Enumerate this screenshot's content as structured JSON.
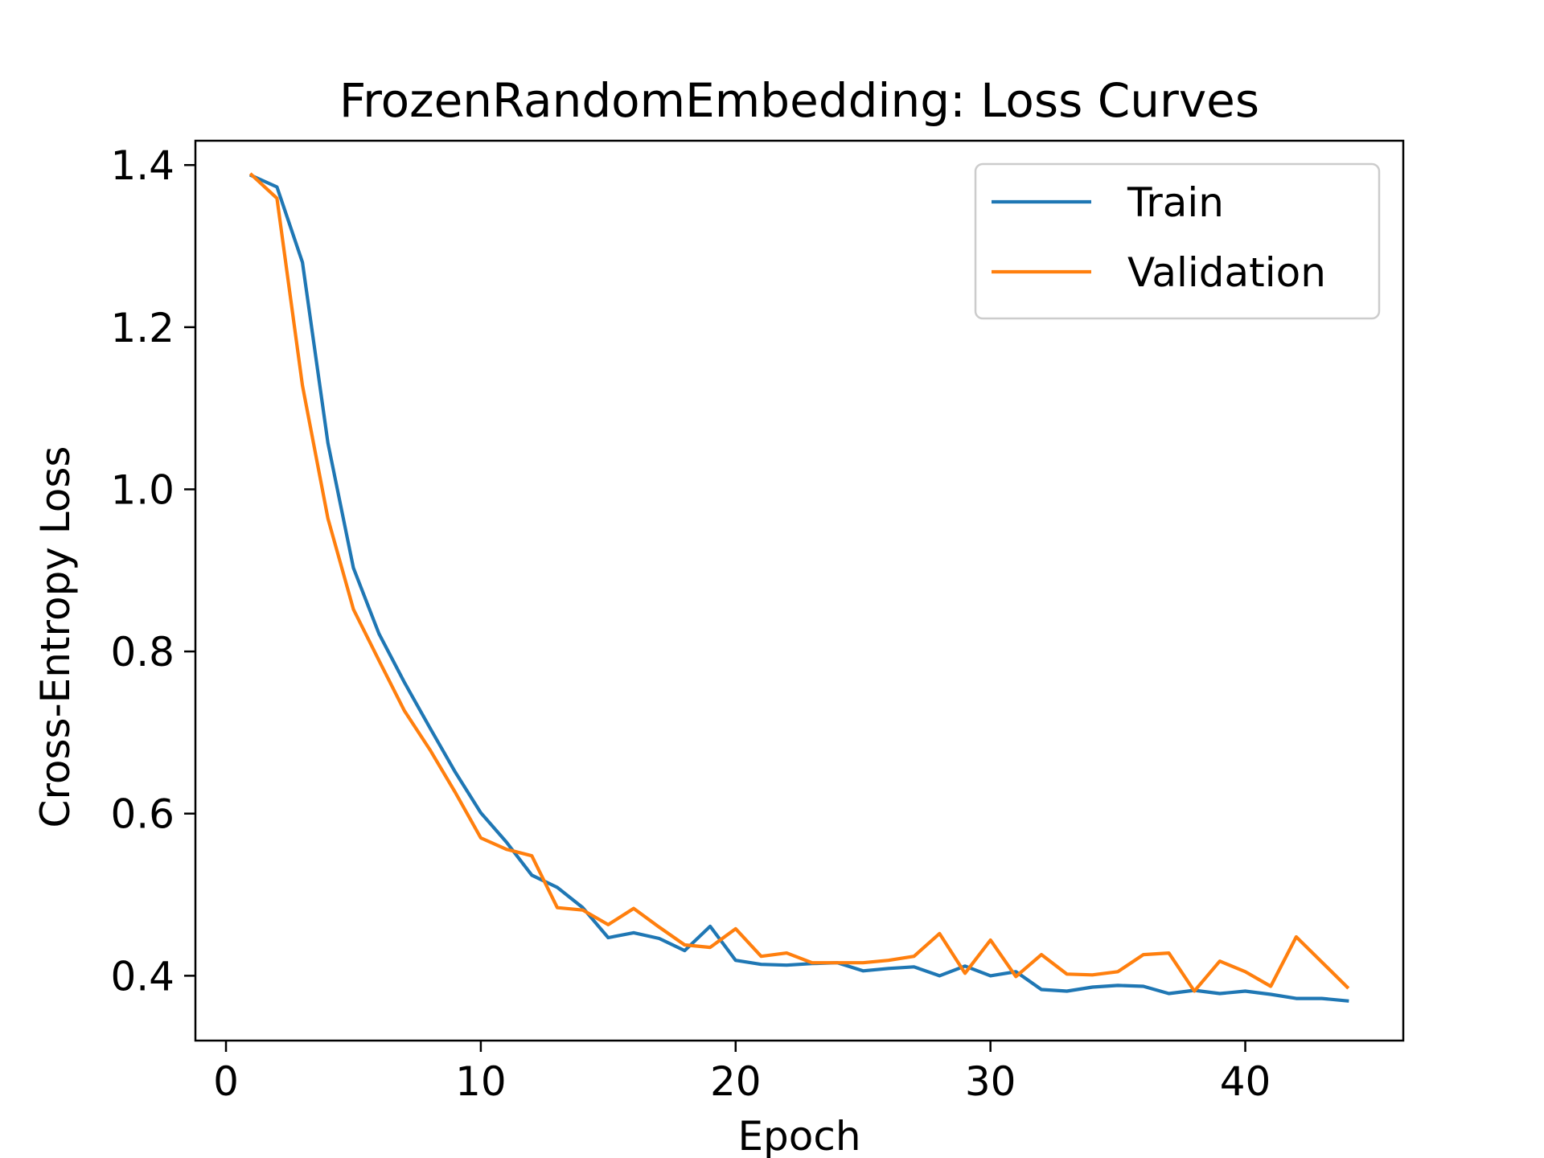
{
  "chart_data": {
    "type": "line",
    "title": "FrozenRandomEmbedding: Loss Curves",
    "xlabel": "Epoch",
    "ylabel": "Cross-Entropy Loss",
    "xlim": [
      -1.2,
      46.2
    ],
    "ylim": [
      0.32,
      1.43
    ],
    "xticks": [
      0,
      10,
      20,
      30,
      40
    ],
    "yticks": [
      0.4,
      0.6,
      0.8,
      1.0,
      1.2,
      1.4
    ],
    "xtick_labels": [
      "0",
      "10",
      "20",
      "30",
      "40"
    ],
    "ytick_labels": [
      "0.4",
      "0.6",
      "0.8",
      "1.0",
      "1.2",
      "1.4"
    ],
    "grid": false,
    "legend_position": "top-right",
    "x": [
      1,
      2,
      3,
      4,
      5,
      6,
      7,
      8,
      9,
      10,
      11,
      12,
      13,
      14,
      15,
      16,
      17,
      18,
      19,
      20,
      21,
      22,
      23,
      24,
      25,
      26,
      27,
      28,
      29,
      30,
      31,
      32,
      33,
      34,
      35,
      36,
      37,
      38,
      39,
      40,
      41,
      42,
      43,
      44
    ],
    "series": [
      {
        "name": "Train",
        "color": "#1f77b4",
        "values": [
          1.387,
          1.373,
          1.28,
          1.057,
          0.903,
          0.822,
          0.762,
          0.706,
          0.651,
          0.601,
          0.565,
          0.524,
          0.509,
          0.484,
          0.447,
          0.453,
          0.446,
          0.431,
          0.461,
          0.419,
          0.414,
          0.413,
          0.415,
          0.416,
          0.406,
          0.409,
          0.411,
          0.4,
          0.412,
          0.4,
          0.405,
          0.383,
          0.381,
          0.386,
          0.388,
          0.387,
          0.378,
          0.382,
          0.378,
          0.381,
          0.377,
          0.372,
          0.372,
          0.369
        ]
      },
      {
        "name": "Validation",
        "color": "#ff7f0e",
        "values": [
          1.388,
          1.359,
          1.128,
          0.964,
          0.852,
          0.789,
          0.727,
          0.679,
          0.626,
          0.57,
          0.556,
          0.548,
          0.484,
          0.481,
          0.463,
          0.483,
          0.46,
          0.438,
          0.435,
          0.458,
          0.424,
          0.428,
          0.416,
          0.416,
          0.416,
          0.419,
          0.424,
          0.452,
          0.403,
          0.444,
          0.399,
          0.426,
          0.402,
          0.401,
          0.405,
          0.426,
          0.428,
          0.381,
          0.418,
          0.405,
          0.387,
          0.448,
          0.417,
          0.386
        ]
      }
    ]
  }
}
